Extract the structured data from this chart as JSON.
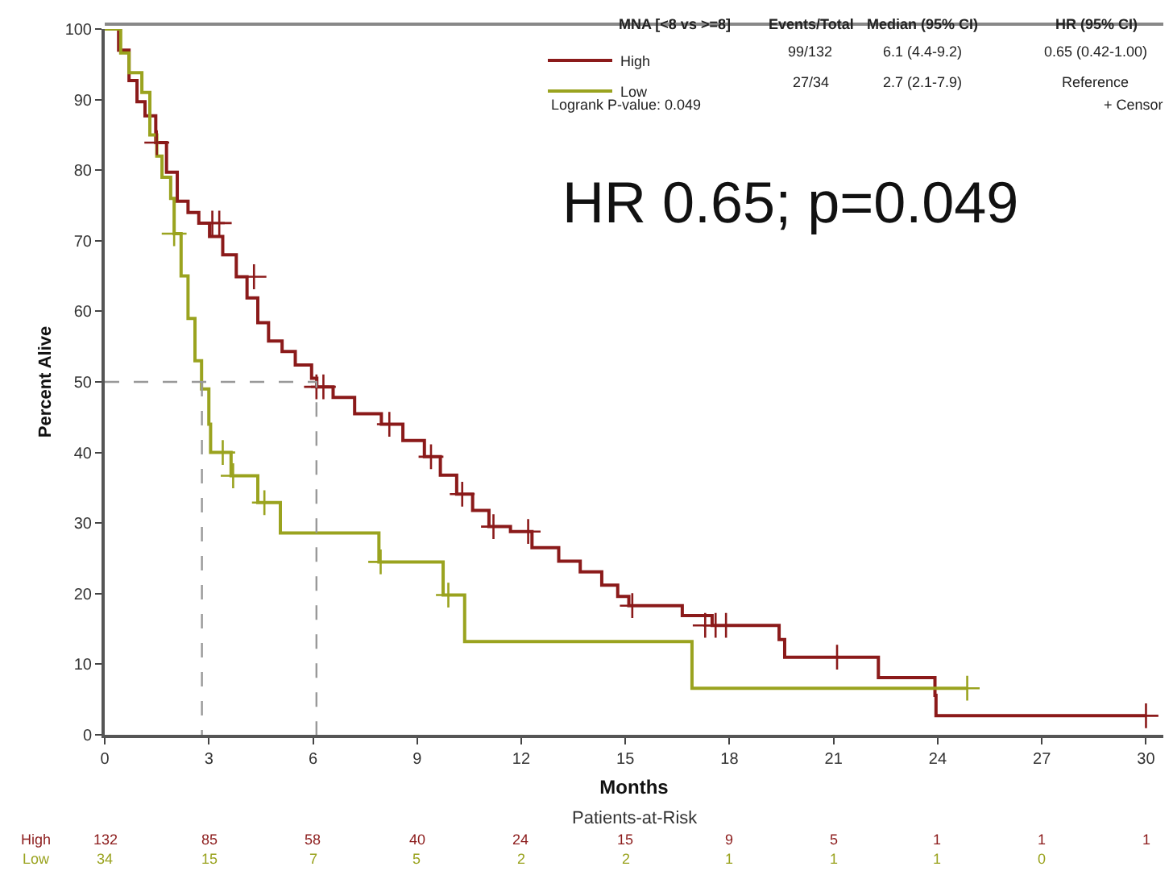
{
  "chart_data": {
    "type": "step",
    "xlabel": "Months",
    "ylabel": "Percent Alive",
    "xlim": [
      0,
      30.5
    ],
    "xticks": [
      0,
      3,
      6,
      9,
      12,
      15,
      18,
      21,
      24,
      27,
      30
    ],
    "ylim": [
      0,
      100
    ],
    "yticks": [
      0,
      10,
      20,
      30,
      40,
      50,
      60,
      70,
      80,
      90,
      100
    ],
    "legend": "top right",
    "series": [
      {
        "name": "High",
        "color": "#8b1a1a",
        "x": [
          0,
          0.4,
          0.7,
          0.93,
          1.16,
          1.47,
          1.78,
          2.09,
          2.4,
          2.71,
          3.02,
          3.4,
          3.79,
          4.1,
          4.41,
          4.72,
          5.11,
          5.49,
          5.96,
          6.11,
          6.58,
          7.2,
          7.97,
          8.59,
          9.21,
          9.67,
          10.14,
          10.6,
          11.07,
          11.69,
          12.31,
          13.08,
          13.7,
          14.32,
          14.78,
          15.1,
          16.64,
          17.5,
          19.43,
          19.59,
          22.29,
          23.92,
          23.95,
          30
        ],
        "values": [
          100,
          97,
          92.7,
          89.7,
          87.7,
          83.9,
          79.7,
          75.6,
          74,
          72.5,
          70.6,
          68,
          64.9,
          61.9,
          58.4,
          55.8,
          54.3,
          52.4,
          50.5,
          49.3,
          47.8,
          45.5,
          44,
          41.7,
          39.4,
          36.8,
          34.1,
          31.8,
          29.5,
          28.8,
          26.5,
          24.6,
          23.1,
          21.2,
          19.6,
          18.3,
          16.9,
          15.5,
          13.5,
          11,
          8.1,
          5.6,
          2.7,
          2.7
        ]
      },
      {
        "name": "Low",
        "color": "#9aa31f",
        "x": [
          0,
          0.46,
          0.7,
          1.07,
          1.3,
          1.5,
          1.65,
          1.9,
          2.0,
          2.2,
          2.4,
          2.6,
          2.79,
          3.0,
          3.05,
          3.64,
          4.41,
          5.06,
          7.9,
          9.75,
          10.37,
          16.92,
          24.85
        ],
        "values": [
          100,
          96.6,
          93.8,
          91,
          85,
          82,
          79,
          76,
          71,
          65,
          59,
          53,
          49,
          44,
          40,
          36.7,
          32.9,
          28.6,
          24.5,
          19.8,
          13.2,
          6.6,
          6.6
        ]
      },
      {
        "type": "scatter",
        "marker": "cross",
        "color": "#8b1a1a",
        "x": [
          1.5,
          3.1,
          3.3,
          4.3,
          6.1,
          6.3,
          8.2,
          9.4,
          10.3,
          11.2,
          12.2,
          15.2,
          17.3,
          17.6,
          17.9,
          21.1,
          30
        ],
        "values": [
          83.9,
          72.5,
          72.5,
          64.9,
          49.3,
          49.3,
          44,
          39.4,
          34.1,
          29.5,
          28.8,
          18.3,
          15.5,
          15.5,
          15.5,
          11,
          2.7
        ]
      },
      {
        "type": "scatter",
        "marker": "cross",
        "color": "#9aa31f",
        "x": [
          2.0,
          3.4,
          3.7,
          4.6,
          7.95,
          9.9,
          24.85
        ],
        "values": [
          71,
          40,
          36.7,
          32.9,
          24.5,
          19.8,
          6.6
        ]
      },
      {
        "type": "line",
        "line_style": "dashed",
        "color": "#999999",
        "x": [
          0,
          6.1,
          6.1
        ],
        "values": [
          50,
          50,
          0
        ]
      },
      {
        "type": "line",
        "line_style": "dashed",
        "color": "#999999",
        "x": [
          2.8,
          2.8
        ],
        "values": [
          50,
          0
        ]
      }
    ],
    "annotations": [
      "MNA [<8 vs >=8]",
      "Events/Total",
      "Median (95% CI)",
      "HR (95% CI)",
      "99/132",
      "6.1 (4.4-9.2)",
      "0.65 (0.42-1.00)",
      "27/34",
      "2.7 (2.1-7.9)",
      "Reference",
      "Logrank P-value: 0.049",
      "+ Censor",
      "HR 0.65; p=0.049",
      "Patients-at-Risk",
      "132",
      "85",
      "58",
      "40",
      "24",
      "15",
      "9",
      "5",
      "1",
      "1",
      "1",
      "34",
      "15",
      "7",
      "5",
      "2",
      "2",
      "1",
      "1",
      "1",
      "0"
    ]
  }
}
